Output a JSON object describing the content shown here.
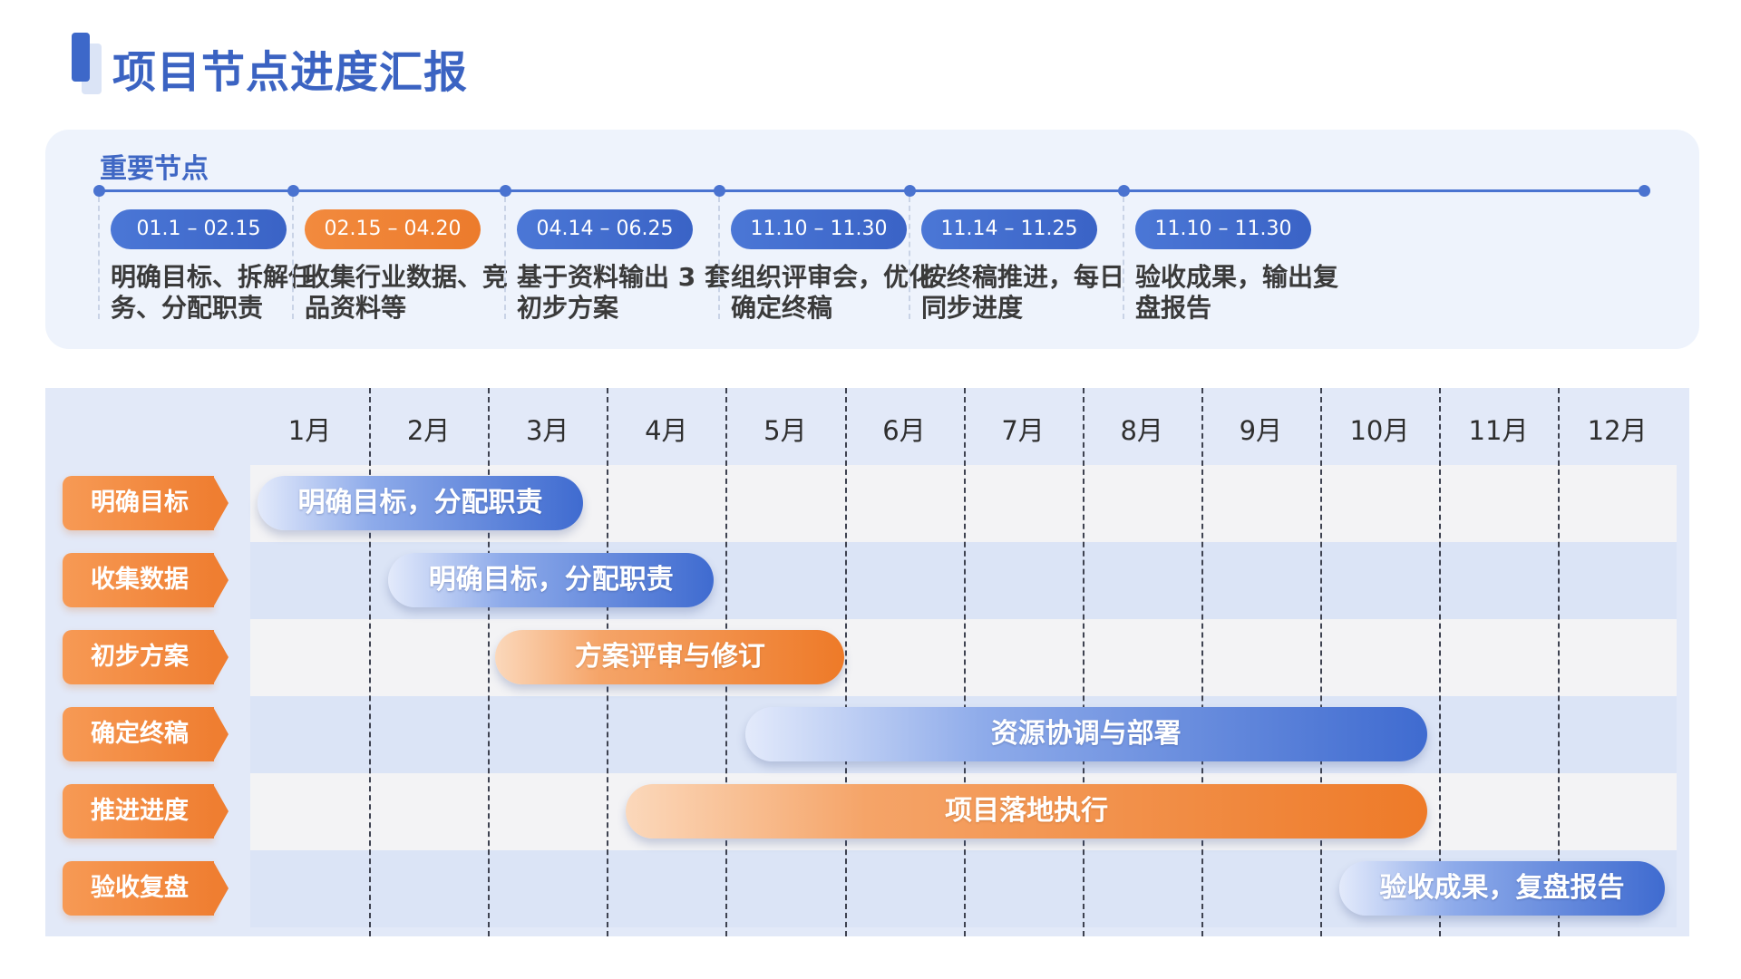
{
  "page_title": "项目节点进度汇报",
  "key_nodes": {
    "title": "重要节点",
    "milestones": [
      {
        "date": "01.1 – 02.15",
        "desc": "明确目标、拆解任务、分配职责",
        "color": "#4370d0"
      },
      {
        "date": "02.15 – 04.20",
        "desc": "收集行业数据、竞品资料等",
        "color": "#ef7e31"
      },
      {
        "date": "04.14 – 06.25",
        "desc": "基于资料输出 3 套初步方案",
        "color": "#4370d0"
      },
      {
        "date": "11.10 – 11.30",
        "desc": "组织评审会，优化确定终稿",
        "color": "#4370d0"
      },
      {
        "date": "11.14 – 11.25",
        "desc": "按终稿推进，每日同步进度",
        "color": "#4370d0"
      },
      {
        "date": "11.10 – 11.30",
        "desc": "验收成果，输出复盘报告",
        "color": "#4370d0"
      }
    ]
  },
  "gantt": {
    "months": [
      "1月",
      "2月",
      "3月",
      "4月",
      "5月",
      "6月",
      "7月",
      "8月",
      "9月",
      "10月",
      "11月",
      "12月"
    ],
    "rows": [
      {
        "label": "明确目标",
        "task": "明确目标，分配职责",
        "start_month": 1.0,
        "end_month": 3.8,
        "color": "blue"
      },
      {
        "label": "收集数据",
        "task": "明确目标，分配职责",
        "start_month": 2.1,
        "end_month": 4.9,
        "color": "blue"
      },
      {
        "label": "初步方案",
        "task": "方案评审与修订",
        "start_month": 3.0,
        "end_month": 6.0,
        "color": "orange"
      },
      {
        "label": "确定终稿",
        "task": "资源协调与部署",
        "start_month": 5.1,
        "end_month": 10.9,
        "color": "blue"
      },
      {
        "label": "推进进度",
        "task": "项目落地执行",
        "start_month": 4.1,
        "end_month": 10.9,
        "color": "orange"
      },
      {
        "label": "验收复盘",
        "task": "验收成果，复盘报告",
        "start_month": 10.1,
        "end_month": 12.9,
        "color": "blue"
      }
    ]
  },
  "colors": {
    "accent_blue": "#3f6bd0",
    "accent_orange": "#ef7e31"
  }
}
